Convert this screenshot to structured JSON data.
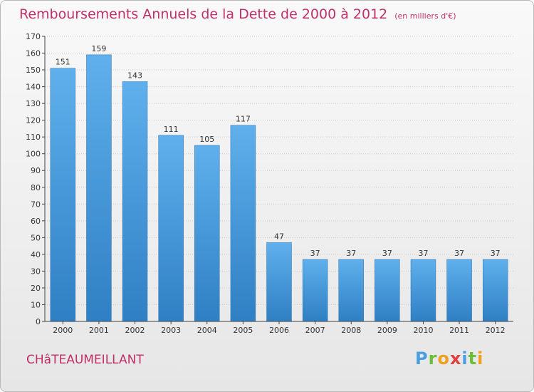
{
  "chart_data": {
    "type": "bar",
    "title": "Remboursements Annuels de la Dette de 2000 à 2012",
    "subtitle": "(en milliers d'€)",
    "categories": [
      "2000",
      "2001",
      "2002",
      "2003",
      "2004",
      "2005",
      "2006",
      "2007",
      "2008",
      "2009",
      "2010",
      "2011",
      "2012"
    ],
    "values": [
      151,
      159,
      143,
      111,
      105,
      117,
      47,
      37,
      37,
      37,
      37,
      37,
      37
    ],
    "ylim": [
      0,
      170
    ],
    "yticks": [
      0,
      10,
      20,
      30,
      40,
      50,
      60,
      70,
      80,
      90,
      100,
      110,
      120,
      130,
      140,
      150,
      160,
      170
    ],
    "grid": true,
    "bar_color": "#4a9fe0"
  },
  "commune": "CHâTEAUMEILLANT",
  "logo": {
    "letters": [
      "P",
      "r",
      "o",
      "x",
      "i",
      "t",
      "i"
    ],
    "colors": [
      "#4a9fe0",
      "#6cbf3a",
      "#f0a020",
      "#e04040",
      "#4a9fe0",
      "#6cbf3a",
      "#f0a020"
    ]
  }
}
